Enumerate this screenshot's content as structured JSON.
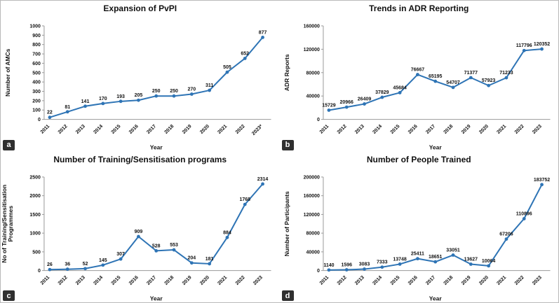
{
  "colors": {
    "line": "#2e74b5",
    "marker": "#2e74b5",
    "axis": "#9a9a9a",
    "text": "#111111",
    "panel_label_bg": "#2f2f2f",
    "panel_label_text": "#ffffff"
  },
  "chart_data": [
    {
      "type": "line",
      "panel": "a",
      "title": "Expansion of PvPI",
      "xlabel": "Year",
      "ylabel": "Number of AMCs",
      "categories": [
        "2011",
        "2012",
        "2013",
        "2014",
        "2015",
        "2016",
        "2017",
        "2018",
        "2019",
        "2020",
        "2021",
        "2022",
        "2023*"
      ],
      "values": [
        22,
        81,
        141,
        170,
        193,
        205,
        250,
        250,
        270,
        311,
        505,
        652,
        877
      ],
      "ylim": [
        0,
        1000
      ],
      "ytick_step": 100,
      "grid": false,
      "legend": false
    },
    {
      "type": "line",
      "panel": "b",
      "title": "Trends in ADR Reporting",
      "xlabel": "Year",
      "ylabel": "ADR Reports",
      "categories": [
        "2011",
        "2012",
        "2013",
        "2014",
        "2015",
        "2016",
        "2017",
        "2018",
        "2019",
        "2020",
        "2021",
        "2022",
        "2023"
      ],
      "values": [
        15729,
        20966,
        26409,
        37829,
        45684,
        76667,
        65195,
        54707,
        71377,
        57923,
        71233,
        117796,
        120352
      ],
      "ylim": [
        0,
        160000
      ],
      "ytick_step": 40000,
      "grid": false,
      "legend": false
    },
    {
      "type": "line",
      "panel": "c",
      "title": "Number of Training/Sensitisation programs",
      "xlabel": "Year",
      "ylabel": "No of Training/Sensitisation\nProgrammes",
      "categories": [
        "2011",
        "2012",
        "2013",
        "2014",
        "2015",
        "2016",
        "2017",
        "2018",
        "2019",
        "2020",
        "2021",
        "2022",
        "2023"
      ],
      "values": [
        26,
        36,
        52,
        145,
        307,
        909,
        528,
        553,
        204,
        181,
        884,
        1768,
        2314
      ],
      "ylim": [
        0,
        2500
      ],
      "ytick_step": 500,
      "grid": false,
      "legend": false
    },
    {
      "type": "line",
      "panel": "d",
      "title": "Number of People Trained",
      "xlabel": "Year",
      "ylabel": "Number of Participants",
      "categories": [
        "2011",
        "2012",
        "2013",
        "2014",
        "2015",
        "2016",
        "2017",
        "2018",
        "2019",
        "2020",
        "2021",
        "2022",
        "2023"
      ],
      "values": [
        1140,
        1596,
        3083,
        7333,
        13748,
        25411,
        18651,
        33051,
        13627,
        10064,
        67206,
        110896,
        183752
      ],
      "ylim": [
        0,
        200000
      ],
      "ytick_step": 40000,
      "grid": false,
      "legend": false
    }
  ]
}
